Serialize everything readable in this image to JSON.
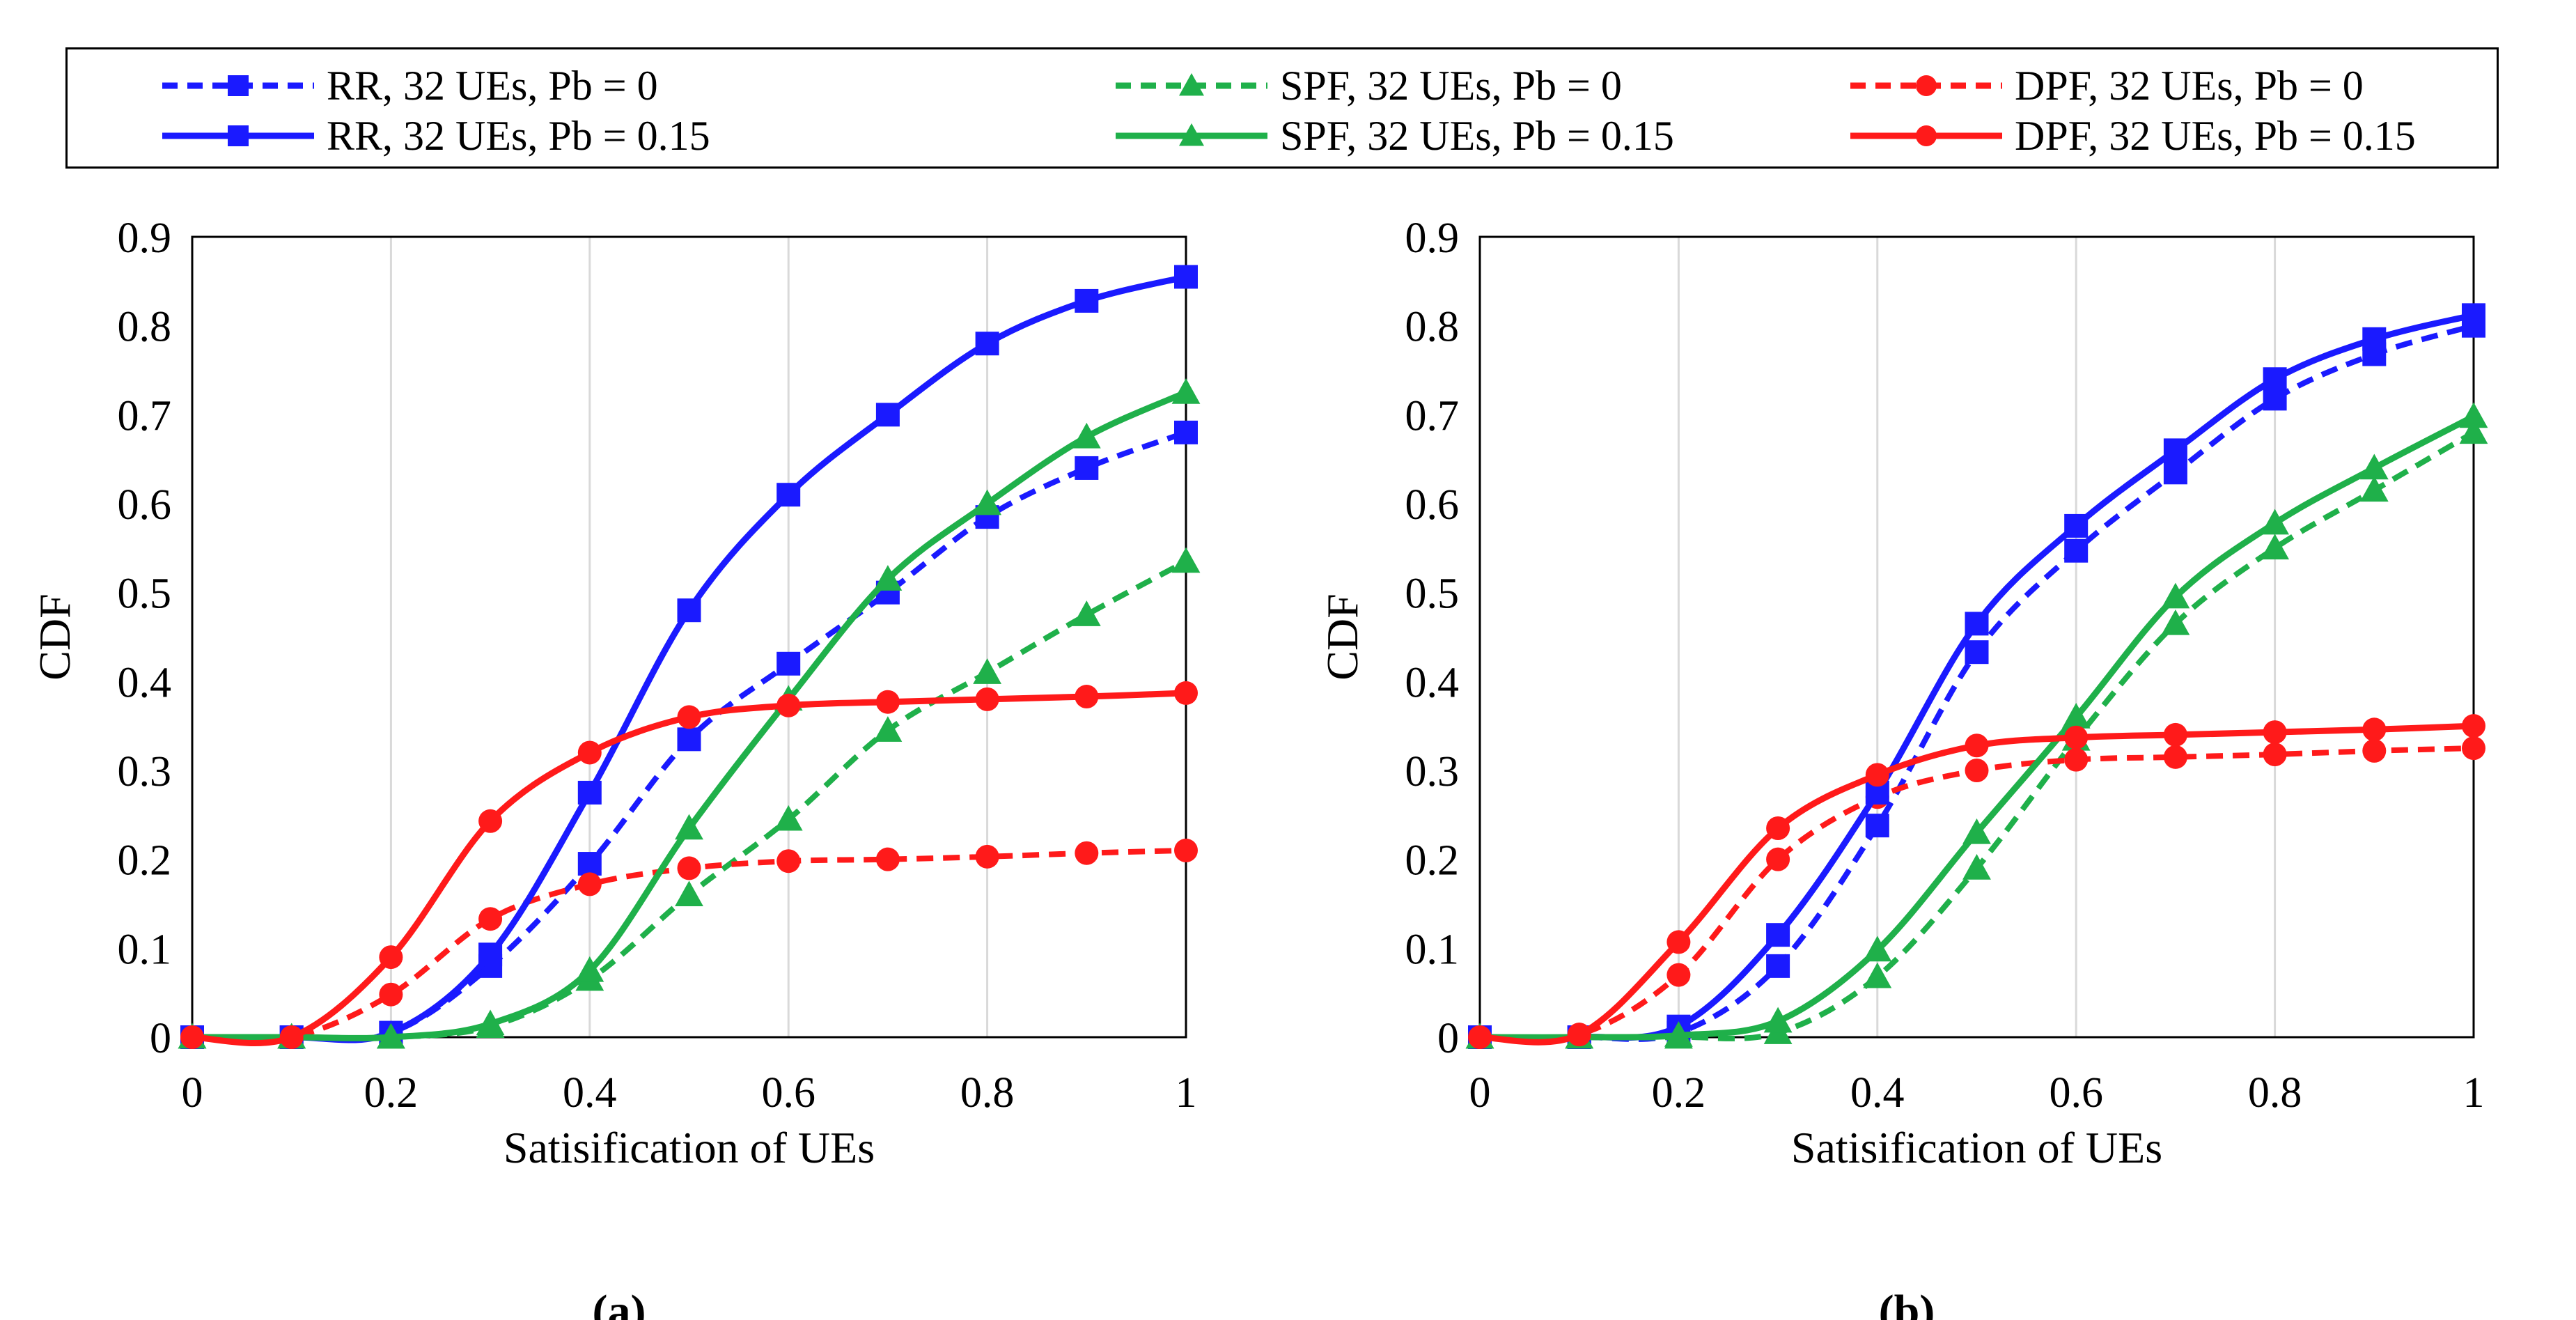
{
  "legend": {
    "entries": [
      {
        "label": "RR, 32 UEs, Pb = 0",
        "color": "#1a1aff",
        "marker": "square",
        "dashed": true
      },
      {
        "label": "SPF, 32 UEs, Pb = 0",
        "color": "#1fb04a",
        "marker": "triangle",
        "dashed": true
      },
      {
        "label": "DPF, 32 UEs, Pb = 0",
        "color": "#ff1a1a",
        "marker": "circle",
        "dashed": true
      },
      {
        "label": "RR, 32 UEs, Pb = 0.15",
        "color": "#1a1aff",
        "marker": "square",
        "dashed": false
      },
      {
        "label": "SPF, 32 UEs, Pb = 0.15",
        "color": "#1fb04a",
        "marker": "triangle",
        "dashed": false
      },
      {
        "label": "DPF, 32 UEs, Pb = 0.15",
        "color": "#ff1a1a",
        "marker": "circle",
        "dashed": false
      }
    ]
  },
  "chart_data": [
    {
      "type": "line",
      "panel_label": "(a)",
      "title": "",
      "xlabel": "Satisification of UEs",
      "ylabel": "CDF",
      "xlim": [
        0,
        1
      ],
      "ylim": [
        0,
        0.9
      ],
      "x_ticks": [
        "0",
        "0.2",
        "0.4",
        "0.6",
        "0.8",
        "1"
      ],
      "y_ticks": [
        "0",
        "0.1",
        "0.2",
        "0.3",
        "0.4",
        "0.5",
        "0.6",
        "0.7",
        "0.8",
        "0.9"
      ],
      "grid": "vertical",
      "x": [
        0,
        0.1,
        0.2,
        0.3,
        0.4,
        0.5,
        0.6,
        0.7,
        0.8,
        0.9,
        1.0
      ],
      "series": [
        {
          "name": "RR, 32 UEs, Pb = 0",
          "color": "#1a1aff",
          "marker": "square",
          "dashed": true,
          "values": [
            0,
            0,
            0.005,
            0.08,
            0.195,
            0.335,
            0.42,
            0.5,
            0.585,
            0.64,
            0.68
          ]
        },
        {
          "name": "SPF, 32 UEs, Pb = 0",
          "color": "#1fb04a",
          "marker": "triangle",
          "dashed": true,
          "values": [
            0,
            0,
            0,
            0.012,
            0.065,
            0.16,
            0.245,
            0.345,
            0.41,
            0.475,
            0.535
          ]
        },
        {
          "name": "DPF, 32 UEs, Pb = 0",
          "color": "#ff1a1a",
          "marker": "circle",
          "dashed": true,
          "values": [
            0,
            0,
            0.048,
            0.133,
            0.172,
            0.19,
            0.198,
            0.2,
            0.203,
            0.207,
            0.21
          ]
        },
        {
          "name": "RR, 32 UEs, Pb = 0.15",
          "color": "#1a1aff",
          "marker": "square",
          "dashed": false,
          "values": [
            0,
            0,
            0.005,
            0.093,
            0.275,
            0.48,
            0.61,
            0.7,
            0.78,
            0.828,
            0.855
          ]
        },
        {
          "name": "SPF, 32 UEs, Pb = 0.15",
          "color": "#1fb04a",
          "marker": "triangle",
          "dashed": false,
          "values": [
            0,
            0,
            0,
            0.015,
            0.075,
            0.235,
            0.38,
            0.515,
            0.6,
            0.675,
            0.725
          ]
        },
        {
          "name": "DPF, 32 UEs, Pb = 0.15",
          "color": "#ff1a1a",
          "marker": "circle",
          "dashed": false,
          "values": [
            0,
            0,
            0.09,
            0.243,
            0.32,
            0.36,
            0.373,
            0.377,
            0.38,
            0.383,
            0.387
          ]
        }
      ]
    },
    {
      "type": "line",
      "panel_label": "(b)",
      "title": "",
      "xlabel": "Satisification of UEs",
      "ylabel": "CDF",
      "xlim": [
        0,
        1
      ],
      "ylim": [
        0,
        0.9
      ],
      "x_ticks": [
        "0",
        "0.2",
        "0.4",
        "0.6",
        "0.8",
        "1"
      ],
      "y_ticks": [
        "0",
        "0.1",
        "0.2",
        "0.3",
        "0.4",
        "0.5",
        "0.6",
        "0.7",
        "0.8",
        "0.9"
      ],
      "grid": "vertical",
      "x": [
        0,
        0.1,
        0.2,
        0.3,
        0.4,
        0.5,
        0.6,
        0.7,
        0.8,
        0.9,
        1.0
      ],
      "series": [
        {
          "name": "RR, 32 UEs, Pb = 0",
          "color": "#1a1aff",
          "marker": "square",
          "dashed": true,
          "values": [
            0,
            0,
            0.005,
            0.08,
            0.238,
            0.433,
            0.547,
            0.635,
            0.718,
            0.768,
            0.8
          ]
        },
        {
          "name": "SPF, 32 UEs, Pb = 0",
          "color": "#1fb04a",
          "marker": "triangle",
          "dashed": true,
          "values": [
            0,
            0,
            0,
            0.005,
            0.068,
            0.19,
            0.335,
            0.465,
            0.55,
            0.615,
            0.68
          ]
        },
        {
          "name": "DPF, 32 UEs, Pb = 0",
          "color": "#ff1a1a",
          "marker": "circle",
          "dashed": true,
          "values": [
            0,
            0.003,
            0.07,
            0.2,
            0.27,
            0.3,
            0.312,
            0.315,
            0.318,
            0.322,
            0.325
          ]
        },
        {
          "name": "RR, 32 UEs, Pb = 0.15",
          "color": "#1a1aff",
          "marker": "square",
          "dashed": false,
          "values": [
            0,
            0,
            0.012,
            0.115,
            0.275,
            0.465,
            0.575,
            0.66,
            0.74,
            0.785,
            0.812
          ]
        },
        {
          "name": "SPF, 32 UEs, Pb = 0.15",
          "color": "#1fb04a",
          "marker": "triangle",
          "dashed": false,
          "values": [
            0,
            0,
            0.002,
            0.018,
            0.098,
            0.23,
            0.36,
            0.495,
            0.578,
            0.64,
            0.698
          ]
        },
        {
          "name": "DPF, 32 UEs, Pb = 0.15",
          "color": "#ff1a1a",
          "marker": "circle",
          "dashed": false,
          "values": [
            0,
            0.003,
            0.107,
            0.235,
            0.295,
            0.328,
            0.337,
            0.34,
            0.343,
            0.346,
            0.35
          ]
        }
      ]
    }
  ]
}
